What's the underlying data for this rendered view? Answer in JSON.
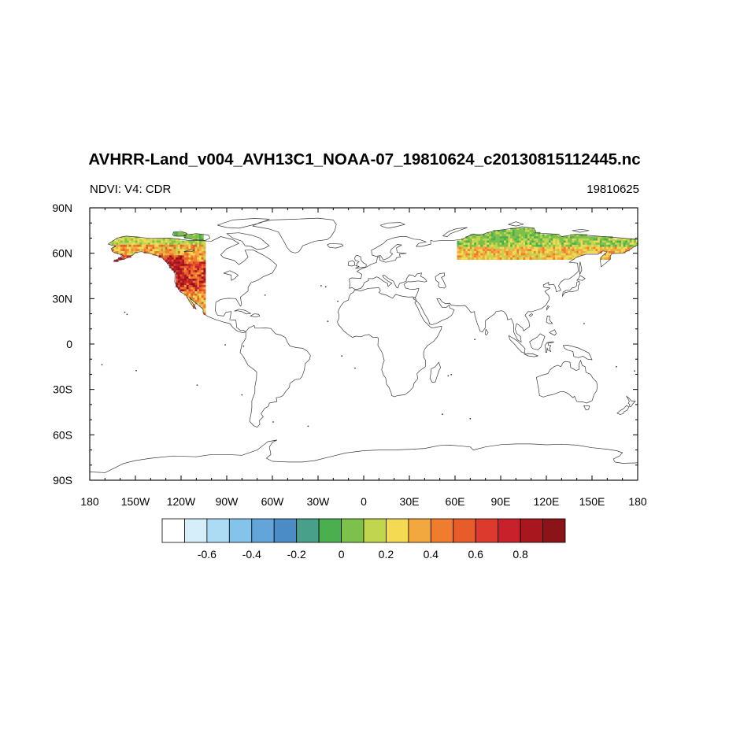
{
  "map": {
    "title": "AVHRR-Land_v004_AVH13C1_NOAA-07_19810624_c20130815112445.nc",
    "left_string": "NDVI: V4: CDR",
    "right_string": "19810625",
    "projection": "cylindrical-equidistant",
    "lon_range": [
      -180,
      180
    ],
    "lat_range": [
      -90,
      90
    ],
    "lon_ticks": [
      {
        "value": -180,
        "label": "180"
      },
      {
        "value": -150,
        "label": "150W"
      },
      {
        "value": -120,
        "label": "120W"
      },
      {
        "value": -90,
        "label": "90W"
      },
      {
        "value": -60,
        "label": "60W"
      },
      {
        "value": -30,
        "label": "30W"
      },
      {
        "value": 0,
        "label": "0"
      },
      {
        "value": 30,
        "label": "30E"
      },
      {
        "value": 60,
        "label": "60E"
      },
      {
        "value": 90,
        "label": "90E"
      },
      {
        "value": 120,
        "label": "120E"
      },
      {
        "value": 150,
        "label": "150E"
      },
      {
        "value": 180,
        "label": "180"
      }
    ],
    "lat_ticks": [
      {
        "value": 90,
        "label": "90N"
      },
      {
        "value": 60,
        "label": "60N"
      },
      {
        "value": 30,
        "label": "30N"
      },
      {
        "value": 0,
        "label": "0"
      },
      {
        "value": -30,
        "label": "30S"
      },
      {
        "value": -60,
        "label": "60S"
      },
      {
        "value": -90,
        "label": "90S"
      }
    ],
    "data_coverage": [
      {
        "region": "western North America",
        "lon_range": [
          -180,
          -104
        ]
      },
      {
        "region": "northern Eurasia",
        "lon_range": [
          62,
          180
        ]
      }
    ]
  },
  "colorbar": {
    "colors": [
      "#ffffff",
      "#d6eef9",
      "#acdcf3",
      "#84c4ea",
      "#63a5d8",
      "#4b8bc6",
      "#48a08a",
      "#4baf4f",
      "#7dc04b",
      "#c2d54f",
      "#f4d953",
      "#f3a73f",
      "#f07c2e",
      "#e85b2b",
      "#dc3a2c",
      "#c9212c",
      "#a8161e",
      "#8a1418"
    ],
    "labels": [
      "-0.6",
      "-0.4",
      "-0.2",
      "0",
      "0.2",
      "0.4",
      "0.6",
      "0.8"
    ],
    "label_boundaries": [
      2,
      4,
      6,
      8,
      10,
      12,
      14,
      16
    ]
  }
}
